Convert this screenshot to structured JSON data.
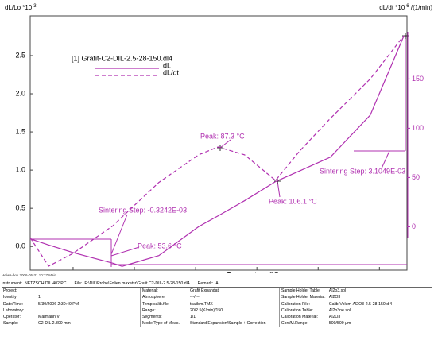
{
  "chart_data": {
    "type": "line",
    "y_label": {
      "text": "dL/Lo *10",
      "sup": "-3"
    },
    "y2_label": {
      "text": "dL/dt *10",
      "sup": "-6",
      "tail": " /(1/min)"
    },
    "x_label": "Temperature /°C",
    "legend_title": "[1] Grafit-C2-DIL-2.5-28-150.dl4",
    "x": [
      26,
      32,
      40,
      53,
      56,
      68,
      81,
      87.3,
      96,
      106.1,
      114,
      124,
      137,
      148
    ],
    "series": [
      {
        "name": "dL",
        "color": "#b030b0",
        "dash": false,
        "values": [
          0.1,
          0.02,
          -0.08,
          -0.22,
          -0.26,
          -0.12,
          0.26,
          0.4,
          0.6,
          0.85,
          0.99,
          1.17,
          1.72,
          2.76
        ]
      },
      {
        "name": "dL/dt",
        "color": "#b030b0",
        "dash": true,
        "axis": "y2",
        "values": [
          -11,
          -40,
          -27,
          1,
          10,
          45,
          73,
          81,
          73,
          47,
          77,
          110,
          150,
          194
        ]
      }
    ],
    "xlim": [
      26,
      149
    ],
    "xticks": [
      40,
      60,
      80,
      100,
      120,
      140
    ],
    "ylim": [
      -0.31,
      3.02
    ],
    "yticks": [
      {
        "value": 0,
        "label": "0.0"
      },
      0.5,
      {
        "value": 1,
        "label": "1.0"
      },
      1.5,
      {
        "value": 2,
        "label": "2.0"
      },
      2.5
    ],
    "y2lim": [
      -44,
      214
    ],
    "y2ticks": [
      0,
      50,
      100,
      150
    ],
    "annotations": [
      "Peak: 87.3 °C",
      "Peak: 106.1 °C",
      "Peak: 53.6 °C",
      "Sintering Step: -0.3242E-03",
      "Sintering Step: 3.1049E-03"
    ]
  },
  "note": "Heiwa-box 2006-05-31 10:27 Main",
  "info": {
    "header": [
      "Instrument:",
      "NETZSCH DIL 402 PC",
      "File:",
      "E:\\DIL\\Probe\\Folien maxatsr\\Grafit C2-DIL-2.5-28-150.dl4",
      "Remark:",
      "A"
    ],
    "columns": [
      [
        [
          "Project:",
          ""
        ],
        [
          "Identity:",
          "1"
        ],
        [
          "Date/Time:",
          "5/30/2006 2:30:49 PM"
        ],
        [
          "Laboratory:",
          ""
        ],
        [
          "Operator:",
          "Marmann V"
        ],
        [
          "Sample:",
          "C2-DIL 2.300 mm"
        ]
      ],
      [
        [
          "Material:",
          "Grafit Expandat"
        ],
        [
          "Atmosphere:",
          "---/---"
        ],
        [
          "Temp.calib.file:",
          "tcalibm.TMX"
        ],
        [
          "Range:",
          "20/2.5(K/min)/150"
        ],
        [
          "Segments:",
          "1/1"
        ],
        [
          "Mode/Type of Meas.:",
          "Standard Expansion/Sample + Correction"
        ]
      ],
      [
        [
          "Sample Holder Table:",
          "Al2o3.sol"
        ],
        [
          "Sample Holder Material:",
          "Al2O3"
        ],
        [
          "Calibration File:",
          "Calib-Volum-Al2O3-2.5-28-150.dl4"
        ],
        [
          "Calibration Table:",
          "Al2o3ne.sol"
        ],
        [
          "Calibration Material:",
          "Al2O3"
        ],
        [
          "Corr/M.Range:",
          "500/500 µm"
        ]
      ]
    ]
  }
}
